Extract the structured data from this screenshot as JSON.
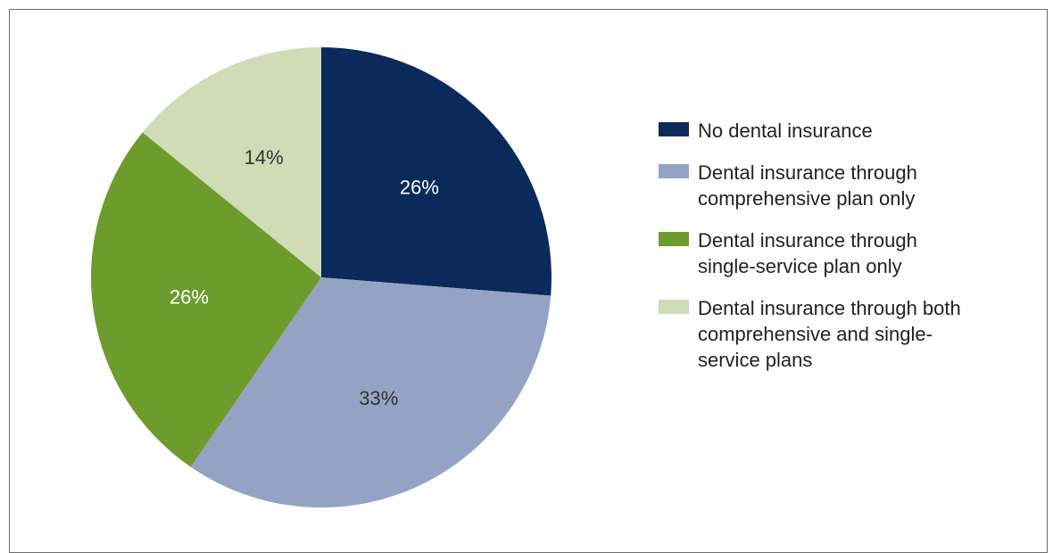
{
  "chart_data": {
    "type": "pie",
    "slices": [
      {
        "name": "No dental insurance",
        "value": 26,
        "label": "26%",
        "color": "#0b2a5b",
        "label_color": "#ffffff"
      },
      {
        "name": "Dental insurance through\ncomprehensive plan only",
        "value": 33,
        "label": "33%",
        "color": "#94a3c4",
        "label_color": "#333333"
      },
      {
        "name": "Dental insurance through\nsingle-service plan only",
        "value": 26,
        "label": "26%",
        "color": "#6d9b2c",
        "label_color": "#ffffff"
      },
      {
        "name": "Dental insurance through both\ncomprehensive and single-\nservice plans",
        "value": 14,
        "label": "14%",
        "color": "#cfdcb5",
        "label_color": "#333333"
      }
    ],
    "start": "12 o'clock",
    "direction": "clockwise",
    "legend_position": "right"
  }
}
